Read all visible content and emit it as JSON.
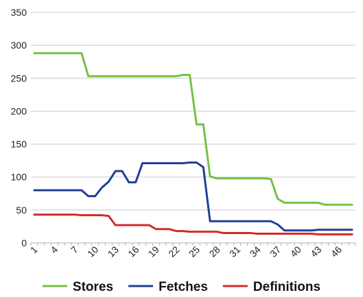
{
  "chart_data": {
    "type": "line",
    "x": [
      1,
      2,
      3,
      4,
      5,
      6,
      7,
      8,
      9,
      10,
      11,
      12,
      13,
      14,
      15,
      16,
      17,
      18,
      19,
      20,
      21,
      22,
      23,
      24,
      25,
      26,
      27,
      28,
      29,
      30,
      31,
      32,
      33,
      34,
      35,
      36,
      37,
      38,
      39,
      40,
      41,
      42,
      43,
      44,
      45,
      46,
      47,
      48
    ],
    "xticks": [
      1,
      4,
      7,
      10,
      13,
      16,
      19,
      22,
      25,
      28,
      31,
      34,
      37,
      40,
      43,
      46
    ],
    "ylim": [
      0,
      350
    ],
    "yticks": [
      0,
      50,
      100,
      150,
      200,
      250,
      300,
      350
    ],
    "grid": "horizontal",
    "legend_position": "bottom",
    "series": [
      {
        "name": "Stores",
        "color": "#77c043",
        "values": [
          288,
          288,
          288,
          288,
          288,
          288,
          288,
          288,
          253,
          253,
          253,
          253,
          253,
          253,
          253,
          253,
          253,
          253,
          253,
          253,
          253,
          253,
          255,
          255,
          180,
          180,
          101,
          98,
          98,
          98,
          98,
          98,
          98,
          98,
          98,
          97,
          67,
          61,
          61,
          61,
          61,
          61,
          61,
          58,
          58,
          58,
          58,
          58
        ]
      },
      {
        "name": "Fetches",
        "color": "#1f3f95",
        "values": [
          80,
          80,
          80,
          80,
          80,
          80,
          80,
          80,
          71,
          71,
          84,
          93,
          109,
          109,
          92,
          92,
          121,
          121,
          121,
          121,
          121,
          121,
          121,
          122,
          122,
          115,
          33,
          33,
          33,
          33,
          33,
          33,
          33,
          33,
          33,
          33,
          28,
          19,
          19,
          19,
          19,
          19,
          20,
          20,
          20,
          20,
          20,
          20
        ]
      },
      {
        "name": "Definitions",
        "color": "#d42a2a",
        "values": [
          43,
          43,
          43,
          43,
          43,
          43,
          43,
          42,
          42,
          42,
          42,
          41,
          27,
          27,
          27,
          27,
          27,
          27,
          21,
          21,
          21,
          18,
          18,
          17,
          17,
          17,
          17,
          17,
          15,
          15,
          15,
          15,
          15,
          14,
          14,
          14,
          14,
          14,
          14,
          14,
          14,
          14,
          13,
          13,
          13,
          13,
          13,
          13
        ]
      }
    ]
  }
}
